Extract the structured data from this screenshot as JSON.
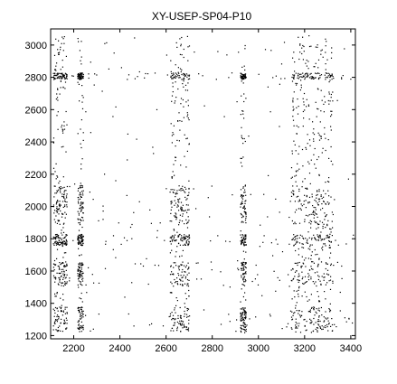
{
  "chart_data": {
    "type": "scatter",
    "title": "XY-USEP-SP04-P10",
    "xlabel": "",
    "ylabel": "",
    "xlim": [
      2100,
      3420
    ],
    "ylim": [
      1180,
      3100
    ],
    "xticks": [
      2200,
      2400,
      2600,
      2800,
      3000,
      3200,
      3400
    ],
    "yticks": [
      1200,
      1400,
      1600,
      1800,
      2000,
      2200,
      2400,
      2600,
      2800,
      3000
    ],
    "grid": false,
    "legend": "none",
    "marker": "point",
    "marker_color": "#000000",
    "dense_bands": {
      "x_ranges": [
        [
          2110,
          2170
        ],
        [
          2215,
          2240
        ],
        [
          2615,
          2700
        ],
        [
          2920,
          2945
        ],
        [
          3140,
          3320
        ]
      ],
      "y_ranges": [
        [
          1230,
          1380
        ],
        [
          1510,
          1660
        ],
        [
          1760,
          1830
        ],
        [
          1890,
          2130
        ],
        [
          2790,
          2830
        ]
      ]
    },
    "points_sample": [
      [
        2120,
        3040
      ],
      [
        2140,
        2990
      ],
      [
        2155,
        2810
      ],
      [
        2130,
        2590
      ],
      [
        2150,
        2470
      ],
      [
        2125,
        2100
      ],
      [
        2160,
        2050
      ],
      [
        2135,
        1990
      ],
      [
        2145,
        1780
      ],
      [
        2120,
        1560
      ],
      [
        2150,
        1330
      ],
      [
        2230,
        2060
      ],
      [
        2232,
        1830
      ],
      [
        2235,
        1570
      ],
      [
        2250,
        2590
      ],
      [
        2380,
        2620
      ],
      [
        2470,
        2420
      ],
      [
        2540,
        2370
      ],
      [
        2640,
        2080
      ],
      [
        2660,
        1990
      ],
      [
        2680,
        2060
      ],
      [
        2690,
        1580
      ],
      [
        2650,
        1310
      ],
      [
        2675,
        2800
      ],
      [
        2665,
        3050
      ],
      [
        2720,
        2960
      ],
      [
        2850,
        2560
      ],
      [
        2930,
        2050
      ],
      [
        2935,
        1560
      ],
      [
        2925,
        2780
      ],
      [
        2940,
        3000
      ],
      [
        3050,
        2590
      ],
      [
        3090,
        2760
      ],
      [
        3150,
        2080
      ],
      [
        3180,
        1990
      ],
      [
        3220,
        2060
      ],
      [
        3260,
        1810
      ],
      [
        3300,
        1580
      ],
      [
        3170,
        1340
      ],
      [
        3290,
        2830
      ],
      [
        3250,
        2560
      ],
      [
        3390,
        1310
      ],
      [
        3370,
        2980
      ]
    ]
  }
}
